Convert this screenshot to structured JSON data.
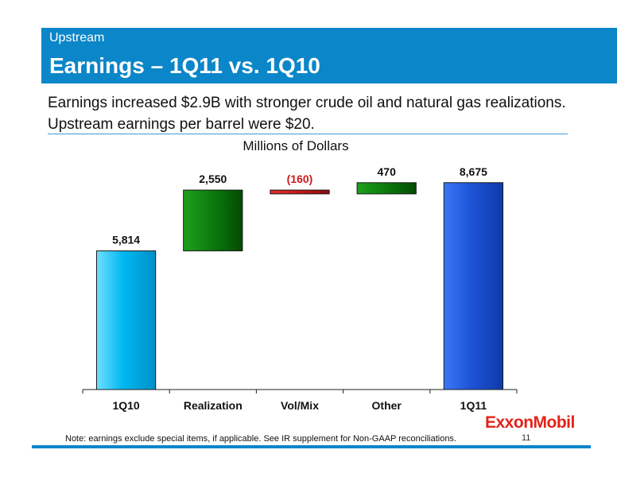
{
  "header": {
    "section": "Upstream",
    "title": "Earnings – 1Q11 vs. 1Q10"
  },
  "subtitle": "Earnings increased $2.9B with stronger crude oil and natural gas realizations. Upstream earnings per barrel were $20.",
  "chart_data": {
    "type": "bar",
    "subtype": "waterfall",
    "title": "Millions of Dollars",
    "categories": [
      "1Q10",
      "Realization",
      "Vol/Mix",
      "Other",
      "1Q11"
    ],
    "values": [
      5814,
      2550,
      -160,
      470,
      8675
    ],
    "labels": [
      "5,814",
      "2,550",
      "(160)",
      "470",
      "8,675"
    ],
    "kinds": [
      "total",
      "delta",
      "delta",
      "delta",
      "total"
    ],
    "ylim": [
      0,
      10000
    ],
    "grid": false,
    "colors": {
      "total_start": "#00b8f0",
      "total_end": "#1e54d8",
      "increase": "#0b7a0b",
      "decrease": "#c41818",
      "negative_label": "#d01818"
    }
  },
  "logo": "ExxonMobil",
  "footer": {
    "note": "Note: earnings exclude special items, if applicable. See IR supplement for Non-GAAP reconciliations.",
    "page": "11"
  }
}
